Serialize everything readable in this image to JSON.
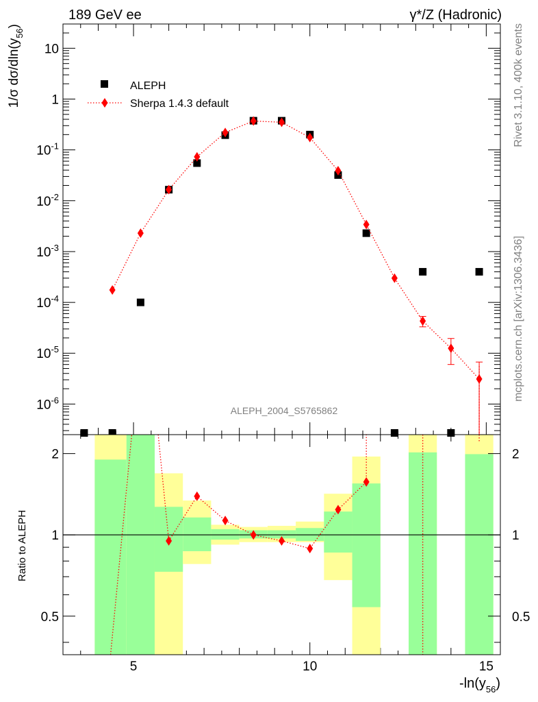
{
  "header": {
    "left": "189 GeV ee",
    "right": "γ*/Z (Hadronic)"
  },
  "side_labels": {
    "rivet": "Rivet 3.1.10,  400k events",
    "mcplots": "mcplots.cern.ch [arXiv:1306.3436]"
  },
  "analysis_label": "ALEPH_2004_S5765862",
  "colors": {
    "data": "#000000",
    "mc": "#ff0000",
    "band_inner": "#99ff99",
    "band_outer": "#ffff99",
    "label_gray": "#808080"
  },
  "chart_data": [
    {
      "type": "scatter",
      "panel": "main",
      "title": "",
      "ylabel": "1/σ dσ/dln(y56)",
      "yscale": "log",
      "xlim": [
        3,
        15.4
      ],
      "ylim": [
        2.5e-07,
        30
      ],
      "y_tick_labels": [
        "10^-6",
        "10^-5",
        "10^-4",
        "10^-3",
        "10^-2",
        "10^-1",
        "1",
        "10"
      ],
      "legend": {
        "placement": "top-left",
        "entries": [
          "ALEPH",
          "Sherpa 1.4.3 default"
        ]
      },
      "series": [
        {
          "name": "ALEPH",
          "marker": "square",
          "x": [
            3.6,
            4.4,
            5.2,
            6.0,
            6.8,
            7.6,
            8.4,
            9.2,
            10.0,
            10.8,
            11.6,
            12.4,
            13.2,
            14.0,
            14.8
          ],
          "y": [
            2.7e-07,
            2.7e-07,
            0.0001,
            0.0165,
            0.055,
            0.195,
            0.375,
            0.375,
            0.2,
            0.032,
            0.0023,
            2.7e-07,
            0.0004,
            2.7e-07,
            0.0004
          ]
        },
        {
          "name": "Sherpa 1.4.3 default",
          "marker": "diamond",
          "line": "dotted",
          "x": [
            4.4,
            5.2,
            6.0,
            6.8,
            7.6,
            8.4,
            9.2,
            10.0,
            10.8,
            11.6,
            12.4,
            13.2,
            14.0,
            14.8
          ],
          "y": [
            0.000175,
            0.0023,
            0.0165,
            0.073,
            0.22,
            0.37,
            0.35,
            0.175,
            0.039,
            0.0034,
            0.0003,
            4.3e-05,
            1.25e-05,
            3.1e-06
          ],
          "yerr_low": [
            0,
            0,
            0,
            0,
            0,
            0,
            0,
            0,
            0,
            0,
            0,
            1e-05,
            6.5e-06,
            2.9e-06
          ],
          "yerr_high": [
            0,
            0,
            0,
            0,
            0,
            0,
            0,
            0,
            0,
            0,
            0,
            1e-05,
            7e-06,
            3.6e-06
          ]
        }
      ]
    },
    {
      "type": "line",
      "panel": "ratio",
      "ylabel": "Ratio to ALEPH",
      "xlabel": "-ln(y56)",
      "yscale": "log",
      "xlim": [
        3,
        15.4
      ],
      "ylim": [
        0.36,
        2.35
      ],
      "x_tick_labels": [
        "5",
        "10",
        "15"
      ],
      "y_tick_labels": [
        "0.5",
        "1",
        "2"
      ],
      "bands": [
        {
          "xlo": 3.9,
          "xhi": 4.8,
          "inner_lo": 0.1,
          "inner_hi": 1.9,
          "outer_lo": 0.1,
          "outer_hi": 2.5
        },
        {
          "xlo": 4.8,
          "xhi": 5.6,
          "inner_lo": 0.1,
          "inner_hi": 2.5,
          "outer_lo": 0.1,
          "outer_hi": 2.5
        },
        {
          "xlo": 5.6,
          "xhi": 6.4,
          "inner_lo": 0.73,
          "inner_hi": 1.27,
          "outer_lo": 0.1,
          "outer_hi": 1.69
        },
        {
          "xlo": 6.4,
          "xhi": 7.2,
          "inner_lo": 0.87,
          "inner_hi": 1.16,
          "outer_lo": 0.78,
          "outer_hi": 1.34
        },
        {
          "xlo": 7.2,
          "xhi": 8.0,
          "inner_lo": 0.96,
          "inner_hi": 1.05,
          "outer_lo": 0.92,
          "outer_hi": 1.09
        },
        {
          "xlo": 8.0,
          "xhi": 8.8,
          "inner_lo": 0.97,
          "inner_hi": 1.04,
          "outer_lo": 0.94,
          "outer_hi": 1.07
        },
        {
          "xlo": 8.8,
          "xhi": 9.6,
          "inner_lo": 0.97,
          "inner_hi": 1.04,
          "outer_lo": 0.94,
          "outer_hi": 1.08
        },
        {
          "xlo": 9.6,
          "xhi": 10.4,
          "inner_lo": 0.95,
          "inner_hi": 1.06,
          "outer_lo": 0.94,
          "outer_hi": 1.12
        },
        {
          "xlo": 10.4,
          "xhi": 11.2,
          "inner_lo": 0.86,
          "inner_hi": 1.22,
          "outer_lo": 0.68,
          "outer_hi": 1.42
        },
        {
          "xlo": 11.2,
          "xhi": 12.0,
          "inner_lo": 0.54,
          "inner_hi": 1.55,
          "outer_lo": 0.1,
          "outer_hi": 1.95
        },
        {
          "xlo": 12.8,
          "xhi": 13.6,
          "inner_lo": 0.1,
          "inner_hi": 2.02,
          "outer_lo": 0.1,
          "outer_hi": 2.5
        },
        {
          "xlo": 14.4,
          "xhi": 15.2,
          "inner_lo": 0.1,
          "inner_hi": 1.99,
          "outer_lo": 0.1,
          "outer_hi": 2.5
        }
      ],
      "reference_line": 1,
      "series": [
        {
          "name": "Sherpa 1.4.3 default",
          "x": [
            6.0,
            6.8,
            7.6,
            8.4,
            9.2,
            10.0,
            10.8,
            11.6
          ],
          "y": [
            0.95,
            1.39,
            1.13,
            1.0,
            0.95,
            0.89,
            1.24,
            1.57
          ]
        }
      ]
    }
  ]
}
